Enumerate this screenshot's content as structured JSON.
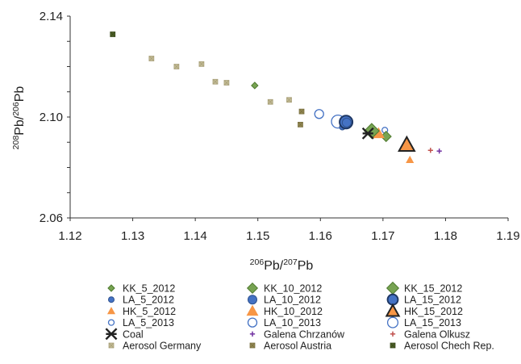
{
  "chart_data": {
    "type": "scatter",
    "xlabel": {
      "base": "Pb",
      "sup1": "206",
      "sup2": "207",
      "text": "206Pb/207Pb"
    },
    "ylabel": {
      "base": "Pb",
      "sup1": "208",
      "sup2": "206",
      "text": "208Pb/206Pb"
    },
    "xlim": [
      1.12,
      1.19
    ],
    "ylim": [
      2.06,
      2.14
    ],
    "xticks": [
      "1.12",
      "1.13",
      "1.14",
      "1.15",
      "1.16",
      "1.17",
      "1.18",
      "1.19"
    ],
    "yticks": [
      "2.06",
      "2.10",
      "2.14"
    ],
    "grid": false,
    "legend_position": "bottom",
    "series": [
      {
        "name": "KK_5_2012",
        "marker": "diamond",
        "size": "small",
        "fill": "#77A352",
        "stroke": "#4E7A2E",
        "points": [
          [
            1.1495,
            2.1125
          ]
        ]
      },
      {
        "name": "KK_10_2012",
        "marker": "diamond",
        "size": "medium",
        "fill": "#77A352",
        "stroke": "#4E7A2E",
        "points": [
          [
            1.1705,
            2.0923
          ]
        ]
      },
      {
        "name": "KK_15_2012",
        "marker": "diamond",
        "size": "large",
        "fill": "#77A352",
        "stroke": "#4E7A2E",
        "points": [
          [
            1.1682,
            2.0945
          ]
        ]
      },
      {
        "name": "LA_5_2012",
        "marker": "circle",
        "size": "small",
        "fill": "#4472C4",
        "stroke": "#2F528F",
        "points": [
          [
            1.1635,
            2.096
          ]
        ]
      },
      {
        "name": "LA_10_2012",
        "marker": "circle",
        "size": "medium",
        "fill": "#4472C4",
        "stroke": "#2F528F",
        "points": [
          [
            1.1642,
            2.0978
          ]
        ]
      },
      {
        "name": "LA_15_2012",
        "marker": "circle",
        "size": "large",
        "fill": "#4472C4",
        "stroke": "#1F3864",
        "points": [
          [
            1.1641,
            2.098
          ]
        ]
      },
      {
        "name": "HK_5_2012",
        "marker": "triangle",
        "size": "small",
        "fill": "#F79646",
        "stroke": "#F79646",
        "points": [
          [
            1.1743,
            2.083
          ]
        ]
      },
      {
        "name": "HK_10_2012",
        "marker": "triangle",
        "size": "medium",
        "fill": "#F79646",
        "stroke": "#F79646",
        "points": [
          [
            1.1693,
            2.0935
          ]
        ]
      },
      {
        "name": "HK_15_2012",
        "marker": "triangle",
        "size": "large",
        "fill": "#F79646",
        "stroke": "#222222",
        "points": [
          [
            1.1738,
            2.089
          ]
        ]
      },
      {
        "name": "LA_5_2013",
        "marker": "circle-open",
        "size": "small",
        "fill": "none",
        "stroke": "#4472C4",
        "points": [
          [
            1.1703,
            2.0948
          ]
        ]
      },
      {
        "name": "LA_10_2013",
        "marker": "circle-open",
        "size": "medium",
        "fill": "none",
        "stroke": "#4472C4",
        "points": [
          [
            1.1598,
            2.1012
          ]
        ]
      },
      {
        "name": "LA_15_2013",
        "marker": "circle-open",
        "size": "large",
        "fill": "none",
        "stroke": "#4472C4",
        "points": [
          [
            1.1628,
            2.0982
          ]
        ]
      },
      {
        "name": "Coal",
        "marker": "asterisk",
        "size": "medium",
        "fill": "none",
        "stroke": "#222222",
        "points": [
          [
            1.1676,
            2.0935
          ]
        ]
      },
      {
        "name": "Galena Chrzanów",
        "marker": "plus",
        "size": "small",
        "fill": "none",
        "stroke": "#7030A0",
        "points": [
          [
            1.179,
            2.0865
          ]
        ]
      },
      {
        "name": "Galena Olkusz",
        "marker": "plus",
        "size": "small",
        "fill": "none",
        "stroke": "#C0504D",
        "points": [
          [
            1.1776,
            2.0868
          ]
        ]
      },
      {
        "name": "Aerosol Germany",
        "marker": "xsquare",
        "size": "small",
        "fill": "#C4BD97",
        "stroke": "#A89F78",
        "points": [
          [
            1.133,
            2.1232
          ],
          [
            1.137,
            2.12
          ],
          [
            1.141,
            2.121
          ],
          [
            1.1432,
            2.114
          ],
          [
            1.145,
            2.1136
          ],
          [
            1.152,
            2.106
          ],
          [
            1.155,
            2.1068
          ]
        ]
      },
      {
        "name": "Aerosol Austria",
        "marker": "xsquare",
        "size": "small",
        "fill": "#948A54",
        "stroke": "#7A7040",
        "points": [
          [
            1.157,
            2.1022
          ],
          [
            1.1568,
            2.097
          ]
        ]
      },
      {
        "name": "Aerosol Chech Rep.",
        "marker": "xsquare",
        "size": "small",
        "fill": "#4F6228",
        "stroke": "#3A4A1C",
        "points": [
          [
            1.1268,
            2.1328
          ]
        ]
      }
    ]
  }
}
